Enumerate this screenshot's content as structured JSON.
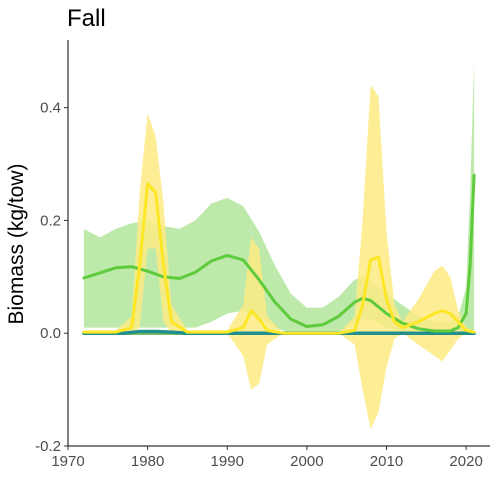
{
  "chart_data": {
    "type": "area",
    "title": "Fall",
    "xlabel": "",
    "ylabel": "Biomass (kg/tow)",
    "xlim": [
      1970,
      2023
    ],
    "ylim": [
      -0.2,
      0.52
    ],
    "xticks": [
      1970,
      1980,
      1990,
      2000,
      2010,
      2020
    ],
    "yticks": [
      -0.2,
      0.0,
      0.2,
      0.4
    ],
    "ytick_labels": [
      "-0.2",
      "0.0",
      "0.2",
      "0.4"
    ],
    "grid": false,
    "legend": "none",
    "series": [
      {
        "color": "#5ecb3d",
        "band_color": "#b1e59b",
        "x": [
          1972,
          1974,
          1976,
          1978,
          1980,
          1982,
          1984,
          1986,
          1988,
          1990,
          1992,
          1994,
          1996,
          1998,
          2000,
          2002,
          2004,
          2006,
          2007,
          2008,
          2010,
          2012,
          2014,
          2016,
          2018,
          2019,
          2020,
          2020.5,
          2021
        ],
        "mean": [
          0.098,
          0.107,
          0.116,
          0.118,
          0.11,
          0.1,
          0.097,
          0.108,
          0.128,
          0.138,
          0.13,
          0.095,
          0.055,
          0.025,
          0.012,
          0.015,
          0.03,
          0.055,
          0.062,
          0.058,
          0.035,
          0.018,
          0.008,
          0.004,
          0.004,
          0.01,
          0.035,
          0.12,
          0.28
        ],
        "lower": [
          0.01,
          0.01,
          0.01,
          0.01,
          0.01,
          0.01,
          0.01,
          0.01,
          0.02,
          0.035,
          0.04,
          0.025,
          0.01,
          0.0,
          0.0,
          0.0,
          0.0,
          0.018,
          0.025,
          0.025,
          0.01,
          0.002,
          0.0,
          0.0,
          0.0,
          0.0,
          0.0,
          0.0,
          0.0
        ],
        "upper": [
          0.185,
          0.17,
          0.185,
          0.195,
          0.2,
          0.19,
          0.185,
          0.2,
          0.23,
          0.24,
          0.225,
          0.18,
          0.12,
          0.07,
          0.045,
          0.045,
          0.065,
          0.095,
          0.1,
          0.095,
          0.07,
          0.05,
          0.03,
          0.02,
          0.02,
          0.03,
          0.08,
          0.25,
          0.48
        ]
      },
      {
        "color": "#fde725",
        "band_color": "#fdeb84",
        "x": [
          1972,
          1976,
          1978,
          1979,
          1980,
          1981,
          1982,
          1983,
          1985,
          1990,
          1992,
          1993,
          1994,
          1995,
          1997,
          2000,
          2004,
          2006,
          2007,
          2008,
          2009,
          2010,
          2011,
          2012,
          2014,
          2016,
          2017,
          2018,
          2019,
          2020,
          2021
        ],
        "mean": [
          0.002,
          0.002,
          0.01,
          0.12,
          0.265,
          0.25,
          0.12,
          0.02,
          0.002,
          0.002,
          0.01,
          0.04,
          0.025,
          0.005,
          0.0,
          0.0,
          0.0,
          0.005,
          0.05,
          0.13,
          0.135,
          0.06,
          0.02,
          0.01,
          0.02,
          0.035,
          0.04,
          0.035,
          0.02,
          0.005,
          0.002
        ],
        "lower": [
          0.0,
          0.0,
          0.0,
          0.01,
          0.15,
          0.15,
          0.02,
          0.0,
          0.0,
          0.0,
          -0.04,
          -0.1,
          -0.09,
          -0.02,
          0.0,
          0.0,
          0.0,
          -0.02,
          -0.1,
          -0.17,
          -0.14,
          -0.06,
          -0.01,
          0.0,
          -0.02,
          -0.04,
          -0.05,
          -0.03,
          -0.01,
          0.0,
          0.0
        ],
        "upper": [
          0.005,
          0.005,
          0.03,
          0.25,
          0.39,
          0.35,
          0.23,
          0.05,
          0.005,
          0.005,
          0.05,
          0.17,
          0.15,
          0.03,
          0.0,
          0.0,
          0.0,
          0.03,
          0.2,
          0.44,
          0.42,
          0.18,
          0.05,
          0.02,
          0.06,
          0.11,
          0.12,
          0.1,
          0.04,
          0.01,
          0.004
        ]
      },
      {
        "color": "#7fbf5f",
        "x": [
          1972,
          2021
        ],
        "mean": [
          0.0,
          0.0
        ]
      },
      {
        "color": "#21908d",
        "x": [
          1972,
          1977,
          1979,
          1981,
          1983,
          1985,
          2021
        ],
        "mean": [
          0.0,
          0.0,
          0.003,
          0.003,
          0.002,
          0.0,
          0.0
        ]
      }
    ]
  }
}
